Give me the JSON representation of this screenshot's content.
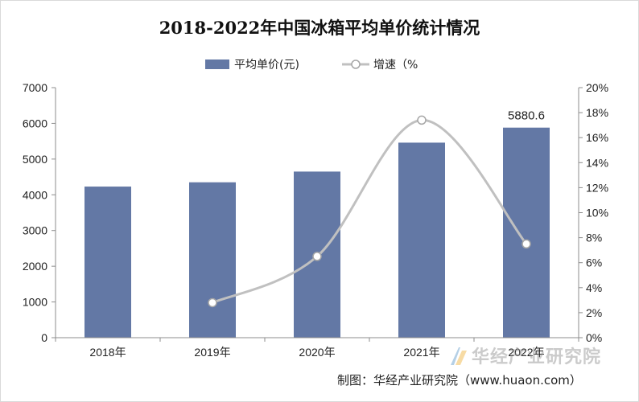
{
  "chart_data": {
    "type": "bar",
    "title": "2018-2022年中国冰箱平均单价统计情况",
    "categories": [
      "2018年",
      "2019年",
      "2020年",
      "2021年",
      "2022年"
    ],
    "series": [
      {
        "name": "平均单价(元)",
        "type": "bar",
        "axis": "left",
        "color": "#6378a5",
        "values": [
          4230,
          4350,
          4650,
          5460,
          5880.6
        ]
      },
      {
        "name": "增速（%",
        "type": "line",
        "axis": "right",
        "color": "#c0c0c0",
        "values": [
          null,
          2.8,
          6.5,
          17.4,
          7.5
        ]
      }
    ],
    "data_labels": [
      {
        "series": 0,
        "index": 4,
        "text": "5880.6"
      }
    ],
    "y_left": {
      "min": 0,
      "max": 7000,
      "step": 1000,
      "ticks": [
        "0",
        "1000",
        "2000",
        "3000",
        "4000",
        "5000",
        "6000",
        "7000"
      ]
    },
    "y_right": {
      "min": 0,
      "max": 20,
      "step": 2,
      "ticks": [
        "0%",
        "2%",
        "4%",
        "6%",
        "8%",
        "10%",
        "12%",
        "14%",
        "16%",
        "18%",
        "20%"
      ]
    },
    "legend_position": "top-center",
    "grid": false
  },
  "watermark": "华经产业研究院",
  "source_note": "制图：华经产业研究院（www.huaon.com）"
}
